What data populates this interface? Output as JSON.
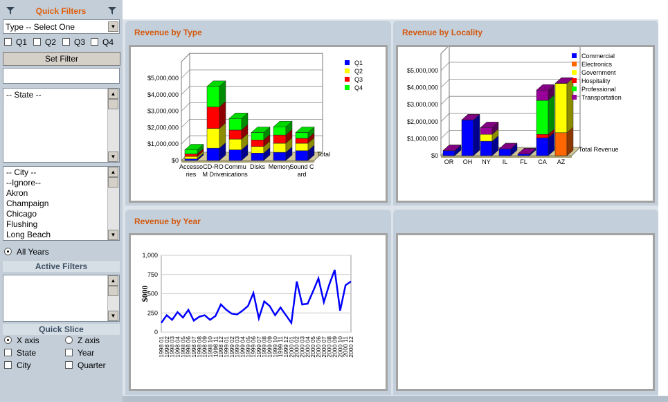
{
  "sidebar": {
    "title": "Quick Filters",
    "type_select": "Type -- Select One",
    "quarters": [
      "Q1",
      "Q2",
      "Q3",
      "Q4"
    ],
    "set_filter": "Set Filter",
    "state_list": [
      "-- State --"
    ],
    "city_list": [
      "-- City --",
      "--Ignore--",
      "Akron",
      "Champaign",
      "Chicago",
      "Flushing",
      "Long Beach"
    ],
    "all_years": "All Years",
    "active_filters": "Active Filters",
    "quick_slice": "Quick Slice",
    "slice_axes": [
      "X axis",
      "Z axis"
    ],
    "slice_dims": [
      "State",
      "Year",
      "City",
      "Quarter"
    ]
  },
  "chart_data": [
    {
      "type": "bar",
      "stacked": true,
      "title": "Revenue by Type",
      "z_label": "Total",
      "categories": [
        "Accessories",
        "CD-ROM Drive",
        "Communications",
        "Disks",
        "Memory",
        "Sound Card"
      ],
      "series": [
        {
          "name": "Q1",
          "color": "#0000ff",
          "values": [
            100000,
            750000,
            650000,
            450000,
            500000,
            600000
          ]
        },
        {
          "name": "Q2",
          "color": "#ffff00",
          "values": [
            150000,
            1200000,
            650000,
            400000,
            550000,
            450000
          ]
        },
        {
          "name": "Q3",
          "color": "#ff0000",
          "values": [
            150000,
            1300000,
            550000,
            400000,
            500000,
            300000
          ]
        },
        {
          "name": "Q4",
          "color": "#00ff00",
          "values": [
            250000,
            1250000,
            700000,
            450000,
            500000,
            350000
          ]
        }
      ],
      "ylim": [
        0,
        6000000
      ],
      "yticks": [
        {
          "value": 0,
          "label": "$0"
        },
        {
          "value": 1000000,
          "label": "$1,000,000"
        },
        {
          "value": 2000000,
          "label": "$2,000,000"
        },
        {
          "value": 3000000,
          "label": "$3,000,000"
        },
        {
          "value": 4000000,
          "label": "$4,000,000"
        },
        {
          "value": 5000000,
          "label": "$5,000,000"
        }
      ],
      "grid": true
    },
    {
      "type": "bar",
      "stacked": true,
      "title": "Revenue by Locality",
      "z_label": "Total Revenue",
      "categories": [
        "OR",
        "OH",
        "NY",
        "IL",
        "FL",
        "CA",
        "AZ"
      ],
      "series": [
        {
          "name": "Commercial",
          "color": "#0000ff",
          "values": [
            300000,
            2100000,
            850000,
            400000,
            100000,
            1050000,
            0
          ]
        },
        {
          "name": "Electronics",
          "color": "#ff6600",
          "values": [
            0,
            0,
            0,
            0,
            0,
            0,
            1350000
          ]
        },
        {
          "name": "Government",
          "color": "#ffff00",
          "values": [
            0,
            0,
            400000,
            0,
            0,
            0,
            2900000
          ]
        },
        {
          "name": "Hospitality",
          "color": "#ff0000",
          "values": [
            0,
            0,
            0,
            0,
            0,
            200000,
            0
          ]
        },
        {
          "name": "Professional",
          "color": "#00ff00",
          "values": [
            0,
            0,
            0,
            0,
            0,
            2000000,
            0
          ]
        },
        {
          "name": "Transportation",
          "color": "#990099",
          "values": [
            0,
            0,
            400000,
            0,
            0,
            600000,
            0
          ]
        }
      ],
      "ylim": [
        0,
        6000000
      ],
      "yticks": [
        {
          "value": 0,
          "label": "$0"
        },
        {
          "value": 1000000,
          "label": "$1,000,000"
        },
        {
          "value": 2000000,
          "label": "$2,000,000"
        },
        {
          "value": 3000000,
          "label": "$3,000,000"
        },
        {
          "value": 4000000,
          "label": "$4,000,000"
        },
        {
          "value": 5000000,
          "label": "$5,000,000"
        }
      ],
      "grid": true
    },
    {
      "type": "line",
      "title": "Revenue by Year",
      "y_label": "$000",
      "color": "#0000ff",
      "categories": [
        "1998 01",
        "1998 02",
        "1998 03",
        "1998 04",
        "1998 05",
        "1998 06",
        "1998 07",
        "1998 08",
        "1998 09",
        "1998 10",
        "1998 11",
        "1998 12",
        "1999 01",
        "1999 02",
        "1999 03",
        "1999 04",
        "1999 05",
        "1999 06",
        "1999 07",
        "1999 08",
        "1999 09",
        "1999 10",
        "1999 11",
        "1999 12",
        "2000 01",
        "2000 02",
        "2000 03",
        "2000 04",
        "2000 05",
        "2000 06",
        "2000 07",
        "2000 08",
        "2000 09",
        "2000 10",
        "2000 11",
        "2000 12"
      ],
      "values": [
        120,
        220,
        160,
        260,
        190,
        290,
        150,
        200,
        220,
        160,
        210,
        360,
        290,
        240,
        230,
        280,
        340,
        510,
        180,
        400,
        340,
        220,
        320,
        220,
        120,
        660,
        360,
        370,
        530,
        700,
        390,
        620,
        810,
        280,
        610,
        660
      ],
      "ylim": [
        0,
        1000
      ],
      "yticks": [
        0,
        250,
        500,
        750,
        {
          "value": 1000,
          "label": "1,000"
        }
      ],
      "grid": true
    }
  ]
}
